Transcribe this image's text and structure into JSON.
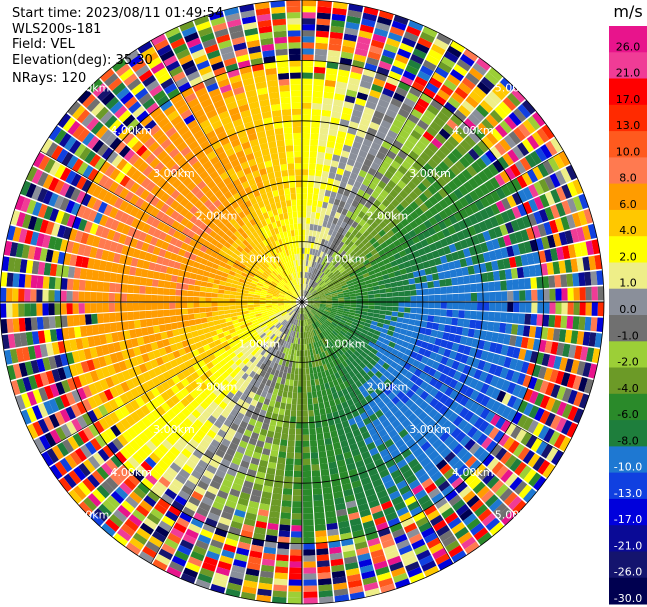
{
  "header": {
    "start_time": "Start time: 2023/08/11 01:49:54",
    "instrument": "WLS200s-181",
    "field": "Field: VEL",
    "elevation": "Elevation(deg): 35.30",
    "nrays": "NRays: 120"
  },
  "chart_data": {
    "type": "heatmap",
    "projection": "polar-ppi",
    "n_rays": 120,
    "range_max_km": 5.0,
    "range_rings_km": [
      1.0,
      2.0,
      3.0,
      4.0,
      5.0
    ],
    "range_ring_labels": [
      "1.00km",
      "2.00km",
      "3.00km",
      "4.00km",
      "5.00km"
    ],
    "colorbar": {
      "unit": "m/s",
      "tick_labels": [
        "26.0",
        "21.0",
        "17.0",
        "13.0",
        "10.0",
        "8.0",
        "6.0",
        "4.0",
        "2.0",
        "1.0",
        "0.0",
        "-1.0",
        "-2.0",
        "-4.0",
        "-6.0",
        "-8.0",
        "-10.0",
        "-13.0",
        "-17.0",
        "-21.0",
        "-26.0",
        "-30.0"
      ],
      "bin_colors": [
        "#e8148c",
        "#f03c96",
        "#ff0000",
        "#ff2a00",
        "#ff5a1e",
        "#ff7a50",
        "#ff9c00",
        "#ffc800",
        "#ffff00",
        "#eeee88",
        "#8a8f9a",
        "#707070",
        "#9ccf37",
        "#6c9a27",
        "#2a8a2a",
        "#1e7e3c",
        "#1e78d2",
        "#1040e0",
        "#0000dc",
        "#0a0a96",
        "#14146e",
        "#000050"
      ]
    },
    "wind_pattern": {
      "receding_max_mps": 8.0,
      "approaching_max_mps": -10.0,
      "receding_toward": "west-northwest",
      "approaching_toward": "east-southeast",
      "noise_beyond_km": 4.0
    }
  }
}
